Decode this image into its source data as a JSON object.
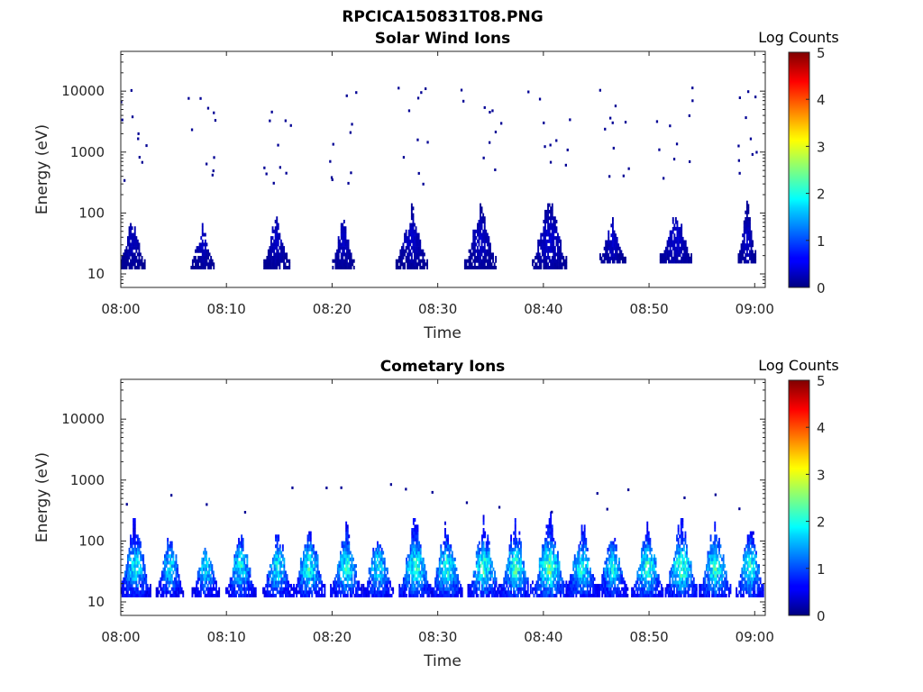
{
  "figure": {
    "title": "RPCICA150831T08.PNG"
  },
  "chart_data": [
    {
      "type": "heatmap",
      "title": "Solar Wind Ions",
      "xlabel": "Time",
      "ylabel": "Energy (eV)",
      "x_range": [
        "08:00",
        "09:01"
      ],
      "x_ticks": [
        "08:00",
        "08:10",
        "08:20",
        "08:30",
        "08:40",
        "08:50",
        "09:00"
      ],
      "y_scale": "log",
      "ylim": [
        6,
        45000
      ],
      "y_ticks": [
        "10",
        "100",
        "1000",
        "10000"
      ],
      "colorbar": {
        "label": "Log Counts",
        "range": [
          0,
          5
        ],
        "ticks": [
          "0",
          "1",
          "2",
          "3",
          "4",
          "5"
        ]
      },
      "bursts": [
        {
          "t": 1.0,
          "emin": 12,
          "emax": 95,
          "level": 0.25,
          "width": 2.4
        },
        {
          "t": 7.7,
          "emin": 12,
          "emax": 75,
          "level": 0.3,
          "width": 2.2
        },
        {
          "t": 14.7,
          "emin": 12,
          "emax": 120,
          "level": 0.3,
          "width": 2.4
        },
        {
          "t": 21.0,
          "emin": 12,
          "emax": 120,
          "level": 0.3,
          "width": 2.0
        },
        {
          "t": 27.5,
          "emin": 12,
          "emax": 150,
          "level": 0.3,
          "width": 3.0
        },
        {
          "t": 34.0,
          "emin": 12,
          "emax": 170,
          "level": 0.3,
          "width": 3.0
        },
        {
          "t": 40.5,
          "emin": 12,
          "emax": 260,
          "level": 0.35,
          "width": 3.2
        },
        {
          "t": 46.5,
          "emin": 15,
          "emax": 90,
          "level": 0.3,
          "width": 2.4
        },
        {
          "t": 52.5,
          "emin": 15,
          "emax": 130,
          "level": 0.35,
          "width": 3.0
        },
        {
          "t": 59.2,
          "emin": 15,
          "emax": 220,
          "level": 0.3,
          "width": 1.6
        }
      ],
      "scatter_energy_range": [
        300,
        12000
      ]
    },
    {
      "type": "heatmap",
      "title": "Cometary Ions",
      "xlabel": "Time",
      "ylabel": "Energy (eV)",
      "x_range": [
        "08:00",
        "09:01"
      ],
      "x_ticks": [
        "08:00",
        "08:10",
        "08:20",
        "08:30",
        "08:40",
        "08:50",
        "09:00"
      ],
      "y_scale": "log",
      "ylim": [
        6,
        45000
      ],
      "y_ticks": [
        "10",
        "100",
        "1000",
        "10000"
      ],
      "colorbar": {
        "label": "Log Counts",
        "range": [
          0,
          5
        ],
        "ticks": [
          "0",
          "1",
          "2",
          "3",
          "4",
          "5"
        ]
      },
      "bursts": [
        {
          "t": 1.3,
          "emin": 12,
          "emax": 350,
          "level": 1.6,
          "width": 3.0
        },
        {
          "t": 4.6,
          "emin": 12,
          "emax": 180,
          "level": 1.5,
          "width": 2.6
        },
        {
          "t": 8.0,
          "emin": 12,
          "emax": 120,
          "level": 1.5,
          "width": 2.6
        },
        {
          "t": 11.3,
          "emin": 12,
          "emax": 180,
          "level": 1.6,
          "width": 2.8
        },
        {
          "t": 14.8,
          "emin": 12,
          "emax": 200,
          "level": 1.6,
          "width": 2.8
        },
        {
          "t": 17.8,
          "emin": 12,
          "emax": 300,
          "level": 1.7,
          "width": 3.0
        },
        {
          "t": 21.3,
          "emin": 12,
          "emax": 250,
          "level": 1.7,
          "width": 3.0
        },
        {
          "t": 24.3,
          "emin": 12,
          "emax": 200,
          "level": 1.6,
          "width": 2.8
        },
        {
          "t": 27.8,
          "emin": 12,
          "emax": 320,
          "level": 1.8,
          "width": 3.0
        },
        {
          "t": 30.8,
          "emin": 12,
          "emax": 280,
          "level": 1.7,
          "width": 3.0
        },
        {
          "t": 34.3,
          "emin": 12,
          "emax": 300,
          "level": 1.8,
          "width": 3.0
        },
        {
          "t": 37.3,
          "emin": 12,
          "emax": 300,
          "level": 1.8,
          "width": 3.0
        },
        {
          "t": 40.5,
          "emin": 12,
          "emax": 400,
          "level": 2.0,
          "width": 3.2
        },
        {
          "t": 43.6,
          "emin": 12,
          "emax": 280,
          "level": 1.7,
          "width": 3.0
        },
        {
          "t": 46.5,
          "emin": 12,
          "emax": 200,
          "level": 1.6,
          "width": 2.8
        },
        {
          "t": 49.8,
          "emin": 12,
          "emax": 220,
          "level": 1.8,
          "width": 3.0
        },
        {
          "t": 53.0,
          "emin": 12,
          "emax": 380,
          "level": 1.9,
          "width": 3.0
        },
        {
          "t": 56.2,
          "emin": 12,
          "emax": 300,
          "level": 1.8,
          "width": 3.0
        },
        {
          "t": 59.5,
          "emin": 12,
          "emax": 380,
          "level": 1.7,
          "width": 2.6
        }
      ],
      "scatter_energy_range": [
        300,
        900
      ]
    }
  ]
}
